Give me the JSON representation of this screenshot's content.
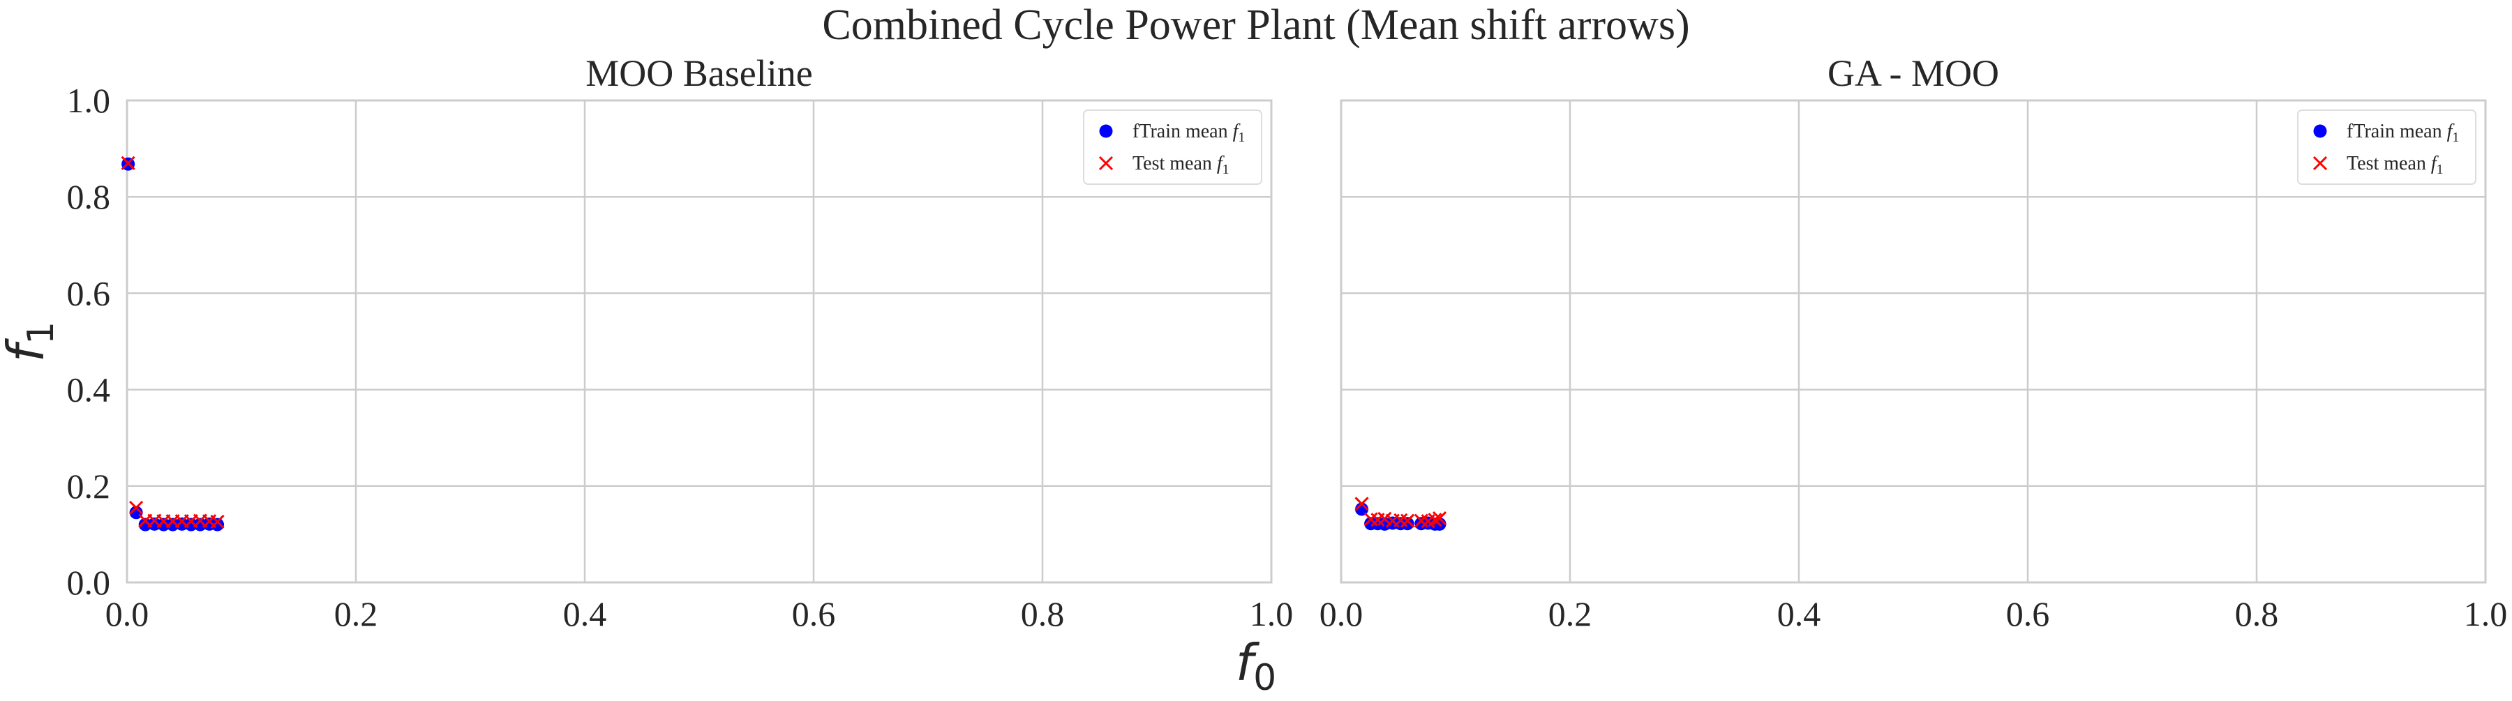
{
  "chart_data": {
    "suptitle": "Combined Cycle Power Plant (Mean shift arrows)",
    "x_label_symbol": "f",
    "x_label_sub": "0",
    "y_label_symbol": "f",
    "y_label_sub": "1",
    "panels": [
      {
        "type": "scatter",
        "title": "MOO Baseline",
        "xlim": [
          0,
          1
        ],
        "ylim": [
          0,
          1
        ],
        "xticks": [
          "0.0",
          "0.2",
          "0.4",
          "0.6",
          "0.8",
          "1.0"
        ],
        "yticks": [
          "0.0",
          "0.2",
          "0.4",
          "0.6",
          "0.8",
          "1.0"
        ],
        "grid": true,
        "legend_position": "top-right",
        "series": [
          {
            "name": "fTrain mean",
            "legend_sub": "1",
            "marker": "circle",
            "color": "#0000ff",
            "x": [
              0.001,
              0.008,
              0.016,
              0.024,
              0.032,
              0.04,
              0.048,
              0.056,
              0.064,
              0.072,
              0.079
            ],
            "y": [
              0.868,
              0.145,
              0.12,
              0.121,
              0.12,
              0.12,
              0.121,
              0.12,
              0.12,
              0.121,
              0.12
            ]
          },
          {
            "name": "Test mean",
            "legend_sub": "1",
            "marker": "x",
            "color": "#ff0000",
            "x": [
              0.001,
              0.008,
              0.016,
              0.024,
              0.032,
              0.04,
              0.048,
              0.056,
              0.064,
              0.072,
              0.079
            ],
            "y": [
              0.87,
              0.155,
              0.128,
              0.128,
              0.127,
              0.127,
              0.127,
              0.127,
              0.128,
              0.127,
              0.126
            ]
          }
        ]
      },
      {
        "type": "scatter",
        "title": "GA - MOO",
        "xlim": [
          0,
          1
        ],
        "ylim": [
          0,
          1
        ],
        "xticks": [
          "0.0",
          "0.2",
          "0.4",
          "0.6",
          "0.8",
          "1.0"
        ],
        "yticks": [],
        "grid": true,
        "legend_position": "top-right",
        "series": [
          {
            "name": "fTrain mean",
            "legend_sub": "1",
            "marker": "circle",
            "color": "#0000ff",
            "x": [
              0.018,
              0.026,
              0.032,
              0.038,
              0.045,
              0.052,
              0.058,
              0.07,
              0.076,
              0.082,
              0.086
            ],
            "y": [
              0.152,
              0.122,
              0.122,
              0.121,
              0.123,
              0.122,
              0.122,
              0.122,
              0.123,
              0.121,
              0.121
            ]
          },
          {
            "name": "Test mean",
            "legend_sub": "1",
            "marker": "x",
            "color": "#ff0000",
            "x": [
              0.018,
              0.026,
              0.032,
              0.038,
              0.045,
              0.052,
              0.058,
              0.07,
              0.076,
              0.082,
              0.086
            ],
            "y": [
              0.163,
              0.131,
              0.13,
              0.132,
              0.128,
              0.129,
              0.128,
              0.128,
              0.127,
              0.13,
              0.133
            ]
          }
        ]
      }
    ]
  }
}
